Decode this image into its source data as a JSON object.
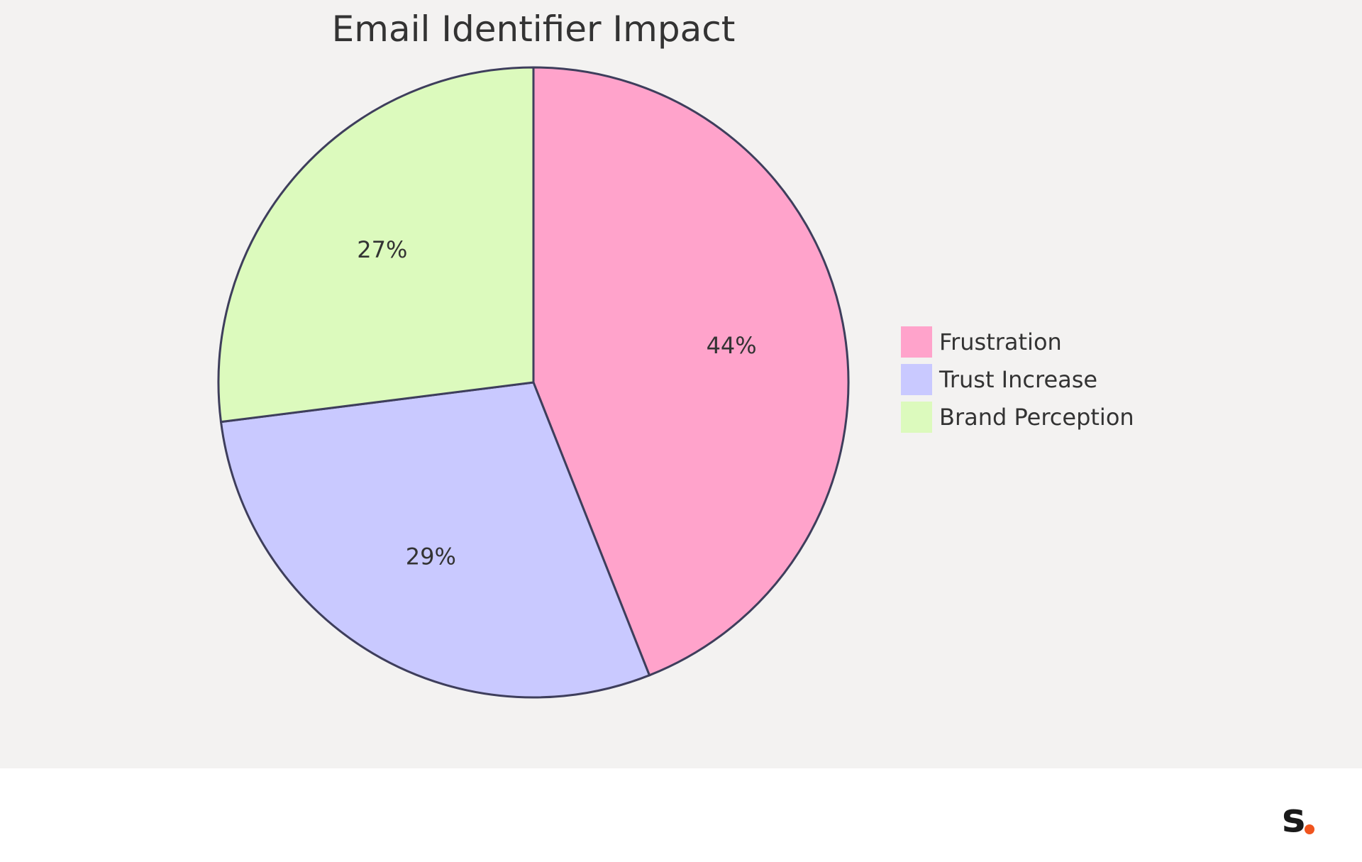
{
  "chart_data": {
    "type": "pie",
    "title": "Email Identifier Impact",
    "categories": [
      "Frustration",
      "Trust Increase",
      "Brand Perception"
    ],
    "values": [
      44,
      29,
      27
    ],
    "value_labels": [
      "44%",
      "29%",
      "27%"
    ],
    "colors": [
      "#ffa3cb",
      "#c9c9ff",
      "#dcfabd"
    ],
    "stroke_color": "#3e3e5c",
    "legend_position": "right",
    "start_angle": "12 o'clock",
    "direction": "clockwise"
  },
  "page": {
    "background": "#f3f2f1",
    "footer_background": "#ffffff"
  },
  "logo": {
    "text": "s",
    "dot_color": "#f0541e"
  }
}
